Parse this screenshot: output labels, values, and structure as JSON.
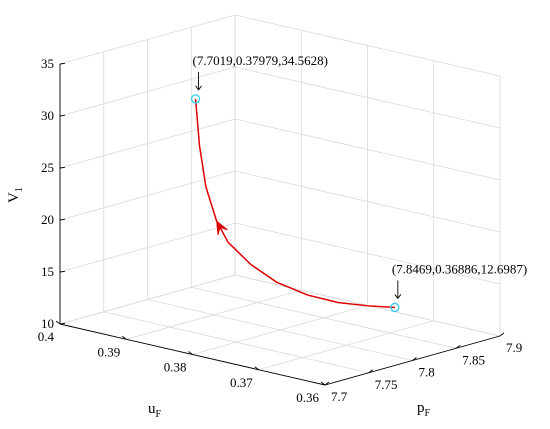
{
  "chart_data": {
    "type": "line3d",
    "title": "",
    "axes": {
      "x": {
        "label": "p",
        "label_subscript": "F",
        "lim": [
          7.7,
          7.9
        ],
        "ticks": [
          7.7,
          7.75,
          7.8,
          7.85,
          7.9
        ],
        "tick_labels": [
          "7.7",
          "7.75",
          "7.8",
          "7.85",
          "7.9"
        ]
      },
      "y": {
        "label": "u",
        "label_subscript": "F",
        "lim": [
          0.36,
          0.4
        ],
        "ticks": [
          0.36,
          0.37,
          0.38,
          0.39,
          0.4
        ],
        "tick_labels": [
          "0.36",
          "0.37",
          "0.38",
          "0.39",
          "0.4"
        ]
      },
      "z": {
        "label": "V",
        "label_subscript": "1",
        "lim": [
          10,
          35
        ],
        "ticks": [
          10,
          15,
          20,
          25,
          30,
          35
        ],
        "tick_labels": [
          "10",
          "15",
          "20",
          "25",
          "30",
          "35"
        ]
      }
    },
    "grid": true,
    "series": [
      {
        "color": "#e00000",
        "points": [
          [
            7.8469,
            0.36886,
            12.6987
          ],
          [
            7.83,
            0.3705,
            13.0
          ],
          [
            7.81,
            0.3725,
            13.5
          ],
          [
            7.79,
            0.3745,
            14.4
          ],
          [
            7.77,
            0.3765,
            15.8
          ],
          [
            7.75,
            0.3778,
            17.8
          ],
          [
            7.73,
            0.3786,
            20.3
          ],
          [
            7.72,
            0.379,
            22.5
          ],
          [
            7.71,
            0.3793,
            26.0
          ],
          [
            7.705,
            0.3796,
            30.0
          ],
          [
            7.7019,
            0.37979,
            34.5628
          ]
        ]
      }
    ],
    "markers": [
      {
        "point": [
          7.7019,
          0.37979,
          34.5628
        ],
        "label": "(7.7019,0.37979,34.5628)",
        "color": "#33ccee"
      },
      {
        "point": [
          7.8469,
          0.36886,
          12.6987
        ],
        "label": "(7.8469,0.36886,12.6987)",
        "color": "#33ccee"
      }
    ],
    "direction_arrow": {
      "at_index": 7,
      "color": "#e00000"
    }
  }
}
